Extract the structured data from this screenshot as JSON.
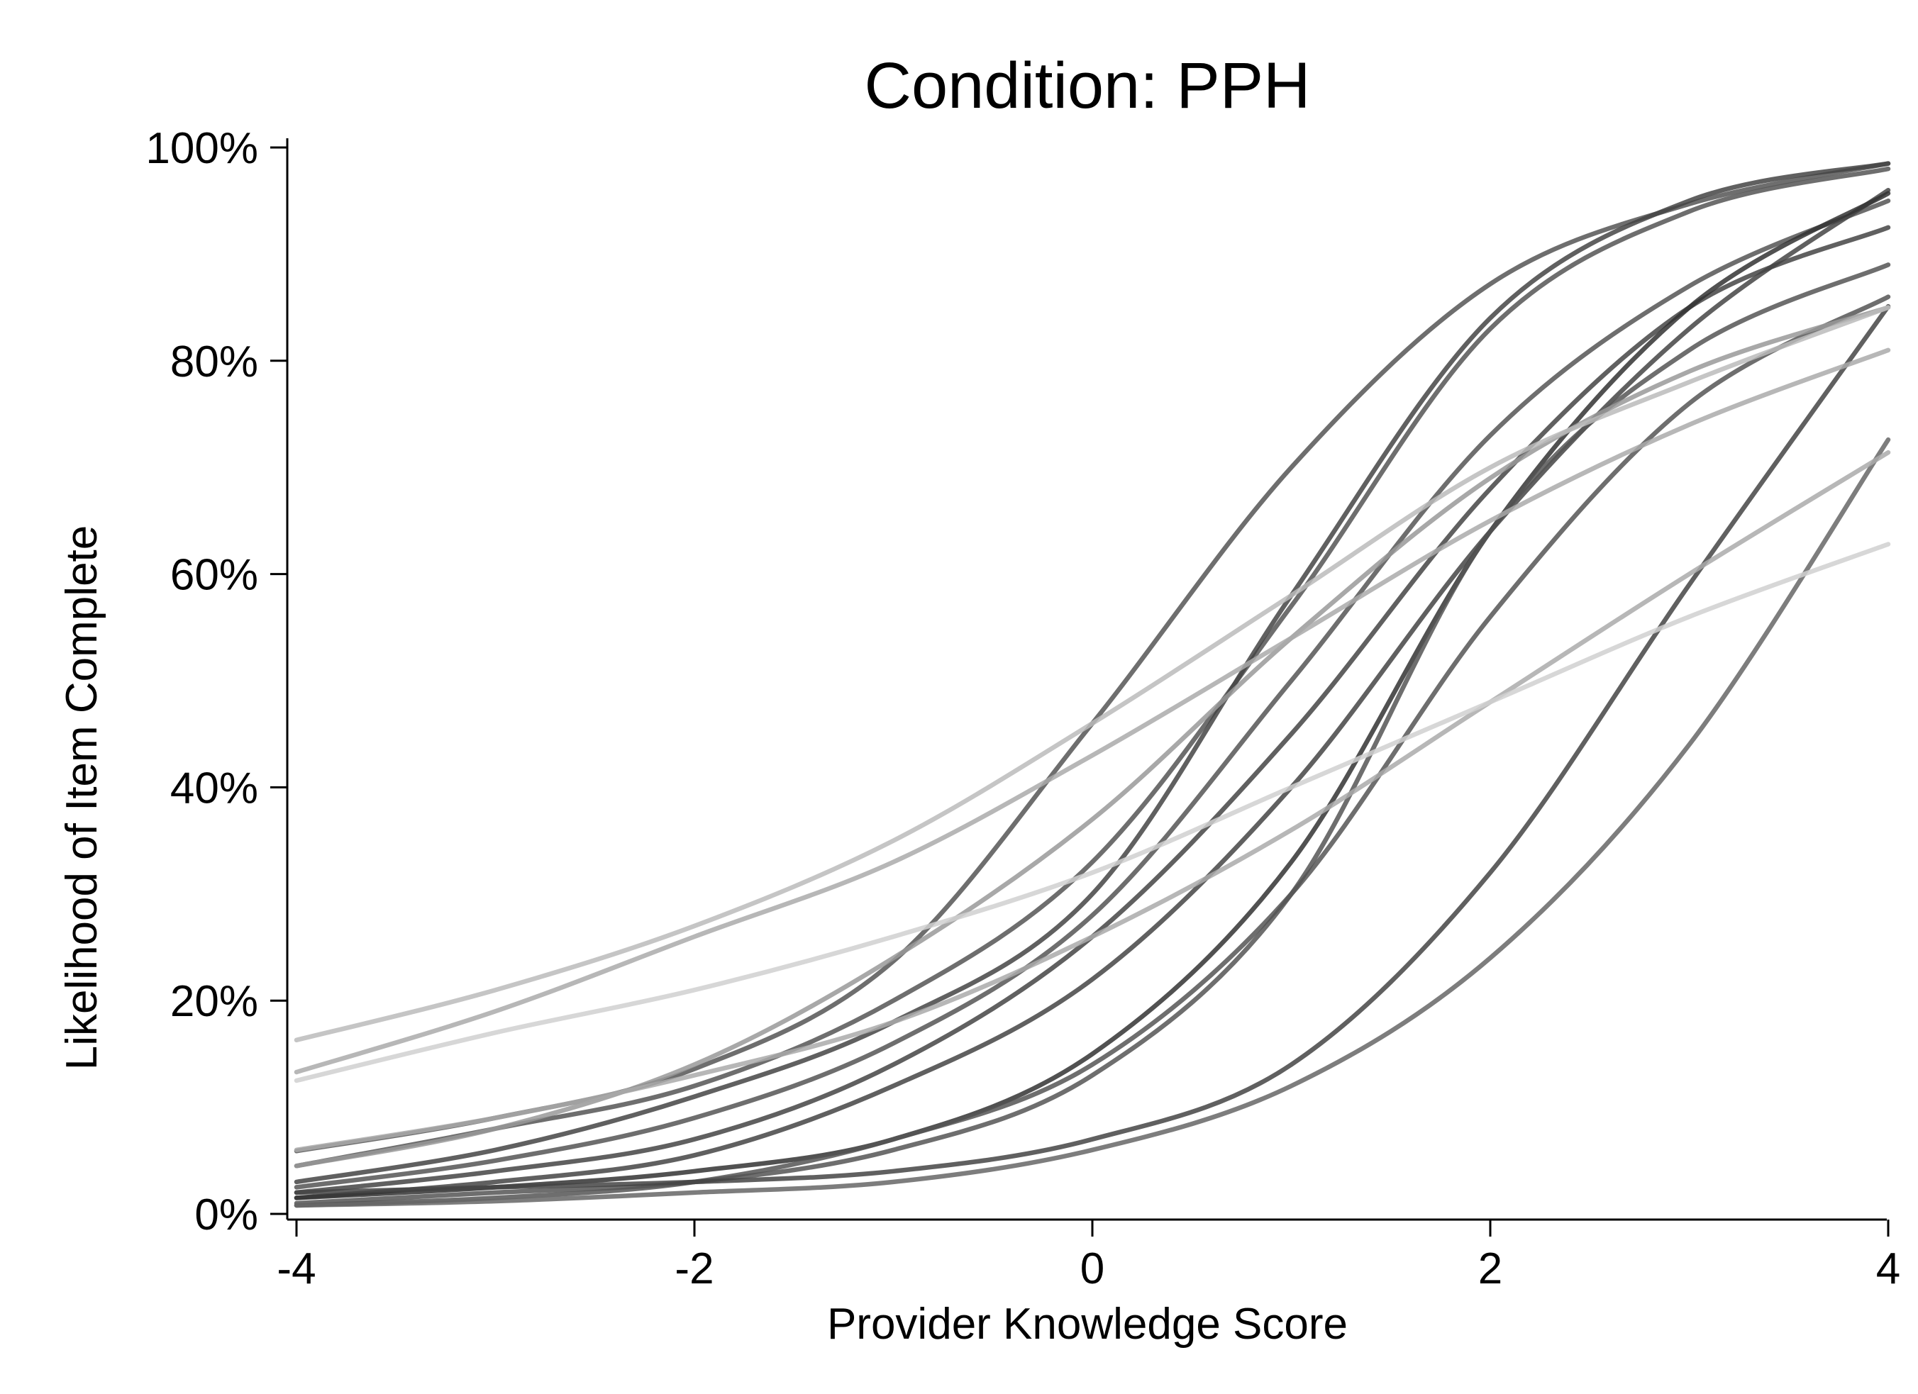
{
  "chart_data": {
    "type": "line",
    "title": "Condition: PPH",
    "xlabel": "Provider Knowledge Score",
    "ylabel": "Likelihood of Item Complete",
    "xlim": [
      -4,
      4
    ],
    "ylim": [
      0,
      1
    ],
    "x_ticks": [
      {
        "value": -4,
        "label": "-4"
      },
      {
        "value": -2,
        "label": "-2"
      },
      {
        "value": 0,
        "label": "0"
      },
      {
        "value": 2,
        "label": "2"
      },
      {
        "value": 4,
        "label": "4"
      }
    ],
    "y_ticks": [
      {
        "value": 0,
        "label": "0%"
      },
      {
        "value": 0.2,
        "label": "20%"
      },
      {
        "value": 0.4,
        "label": "40%"
      },
      {
        "value": 0.6,
        "label": "60%"
      },
      {
        "value": 0.8,
        "label": "80%"
      },
      {
        "value": 1.0,
        "label": "100%"
      }
    ],
    "grid": false,
    "legend": "none",
    "x": [
      -4,
      -3,
      -2,
      -1,
      0,
      1,
      2,
      3,
      4
    ],
    "series": [
      {
        "color": "#555555",
        "values": [
          0.059,
          0.09,
          0.136,
          0.237,
          0.46,
          0.7,
          0.872,
          0.947,
          0.985
        ]
      },
      {
        "color": "#555555",
        "values": [
          0.045,
          0.08,
          0.12,
          0.2,
          0.33,
          0.57,
          0.83,
          0.94,
          0.98
        ]
      },
      {
        "color": "#444444",
        "values": [
          0.03,
          0.06,
          0.11,
          0.18,
          0.3,
          0.58,
          0.84,
          0.95,
          0.985
        ]
      },
      {
        "color": "#555555",
        "values": [
          0.025,
          0.05,
          0.09,
          0.16,
          0.28,
          0.5,
          0.73,
          0.87,
          0.95
        ]
      },
      {
        "color": "#444444",
        "values": [
          0.02,
          0.04,
          0.07,
          0.14,
          0.26,
          0.45,
          0.68,
          0.85,
          0.925
        ]
      },
      {
        "color": "#444444",
        "values": [
          0.015,
          0.03,
          0.055,
          0.12,
          0.22,
          0.4,
          0.64,
          0.83,
          0.96
        ]
      },
      {
        "color": "#333333",
        "values": [
          0.015,
          0.025,
          0.04,
          0.07,
          0.15,
          0.33,
          0.64,
          0.85,
          0.957
        ]
      },
      {
        "color": "#555555",
        "values": [
          0.01,
          0.02,
          0.03,
          0.06,
          0.13,
          0.3,
          0.64,
          0.81,
          0.89
        ]
      },
      {
        "color": "#555555",
        "values": [
          0.008,
          0.015,
          0.03,
          0.07,
          0.14,
          0.3,
          0.56,
          0.76,
          0.86
        ]
      },
      {
        "color": "#444444",
        "values": [
          0.02,
          0.025,
          0.03,
          0.04,
          0.07,
          0.14,
          0.32,
          0.59,
          0.851
        ]
      },
      {
        "color": "#666666",
        "values": [
          0.008,
          0.012,
          0.02,
          0.03,
          0.06,
          0.12,
          0.24,
          0.44,
          0.726
        ]
      },
      {
        "color": "#999999",
        "values": [
          0.045,
          0.08,
          0.14,
          0.24,
          0.37,
          0.54,
          0.69,
          0.79,
          0.85
        ]
      },
      {
        "color": "#aaaaaa",
        "values": [
          0.133,
          0.19,
          0.26,
          0.33,
          0.43,
          0.54,
          0.65,
          0.74,
          0.81
        ]
      },
      {
        "color": "#bbbbbb",
        "values": [
          0.163,
          0.21,
          0.27,
          0.35,
          0.46,
          0.58,
          0.7,
          0.78,
          0.85
        ]
      },
      {
        "color": "#aaaaaa",
        "values": [
          0.06,
          0.09,
          0.13,
          0.18,
          0.26,
          0.36,
          0.48,
          0.6,
          0.714
        ]
      },
      {
        "color": "#d0d0d0",
        "values": [
          0.125,
          0.17,
          0.21,
          0.26,
          0.32,
          0.4,
          0.48,
          0.56,
          0.628
        ]
      }
    ]
  }
}
